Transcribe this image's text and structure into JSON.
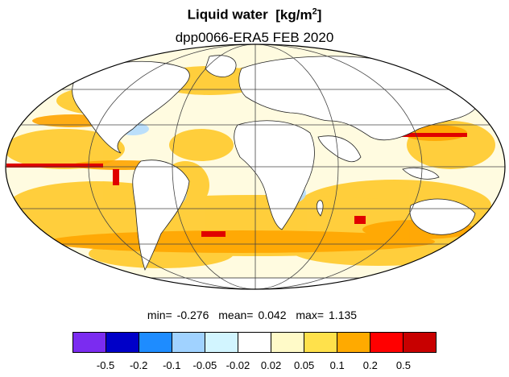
{
  "title": "Liquid water",
  "title_units_base": "[kg/m",
  "title_units_exp": "2",
  "title_units_close": "]",
  "subtitle": "dpp0066-ERA5 FEB 2020",
  "stats": {
    "min_label": "min=",
    "min_value": "-0.276",
    "mean_label": "mean=",
    "mean_value": "0.042",
    "max_label": "max=",
    "max_value": "1.135"
  },
  "colorbar": {
    "colors": [
      "#7b2cf0",
      "#0000c8",
      "#1e8cff",
      "#a0d2ff",
      "#d2f5ff",
      "#ffffff",
      "#fffac8",
      "#ffe14b",
      "#ffaa00",
      "#ff0000",
      "#c80000"
    ],
    "tick_labels": [
      "-0.5",
      "-0.2",
      "-0.1",
      "-0.05",
      "-0.02",
      "0.02",
      "0.05",
      "0.1",
      "0.2",
      "0.5"
    ]
  },
  "map": {
    "projection": "Mollweide",
    "ocean_anomaly_color": "#ffc419",
    "strong_positive_color": "#e00000",
    "negative_color": "#a0d2ff",
    "land_color": "#ffffff",
    "grid": true
  }
}
